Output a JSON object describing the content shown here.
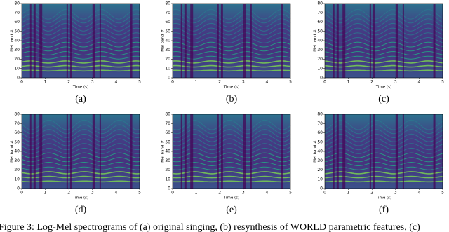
{
  "panels": [
    {
      "label": "(a)",
      "x_label": "Time (s)",
      "y_label": "Mel band #",
      "xlim": [
        0,
        5
      ],
      "ylim": [
        0,
        80
      ],
      "xticks": [
        0,
        1,
        2,
        3,
        4,
        5
      ],
      "yticks": [
        0,
        10,
        20,
        30,
        40,
        50,
        60,
        70,
        80
      ]
    },
    {
      "label": "(b)",
      "x_label": "Time (s)",
      "y_label": "Mel band #",
      "xlim": [
        0,
        5
      ],
      "ylim": [
        0,
        80
      ],
      "xticks": [
        0,
        1,
        2,
        3,
        4,
        5
      ],
      "yticks": [
        0,
        10,
        20,
        30,
        40,
        50,
        60,
        70,
        80
      ]
    },
    {
      "label": "(c)",
      "x_label": "Time (s)",
      "y_label": "Mel band #",
      "xlim": [
        0,
        5
      ],
      "ylim": [
        0,
        80
      ],
      "xticks": [
        0,
        1,
        2,
        3,
        4,
        5
      ],
      "yticks": [
        0,
        10,
        20,
        30,
        40,
        50,
        60,
        70,
        80
      ]
    },
    {
      "label": "(d)",
      "x_label": "Time (s)",
      "y_label": "Mel band #",
      "xlim": [
        0,
        5
      ],
      "ylim": [
        0,
        80
      ],
      "xticks": [
        0,
        1,
        2,
        3,
        4,
        5
      ],
      "yticks": [
        0,
        10,
        20,
        30,
        40,
        50,
        60,
        70,
        80
      ]
    },
    {
      "label": "(e)",
      "x_label": "Time (s)",
      "y_label": "Mel band #",
      "xlim": [
        0,
        5
      ],
      "ylim": [
        0,
        80
      ],
      "xticks": [
        0,
        1,
        2,
        3,
        4,
        5
      ],
      "yticks": [
        0,
        10,
        20,
        30,
        40,
        50,
        60,
        70,
        80
      ]
    },
    {
      "label": "(f)",
      "x_label": "Time (s)",
      "y_label": "Mel band #",
      "xlim": [
        0,
        5
      ],
      "ylim": [
        0,
        80
      ],
      "xticks": [
        0,
        1,
        2,
        3,
        4,
        5
      ],
      "yticks": [
        0,
        10,
        20,
        30,
        40,
        50,
        60,
        70,
        80
      ]
    }
  ],
  "caption": "Figure 3: Log-Mel spectrograms of (a) original singing, (b) resynthesis of WORLD parametric features, (c)"
}
